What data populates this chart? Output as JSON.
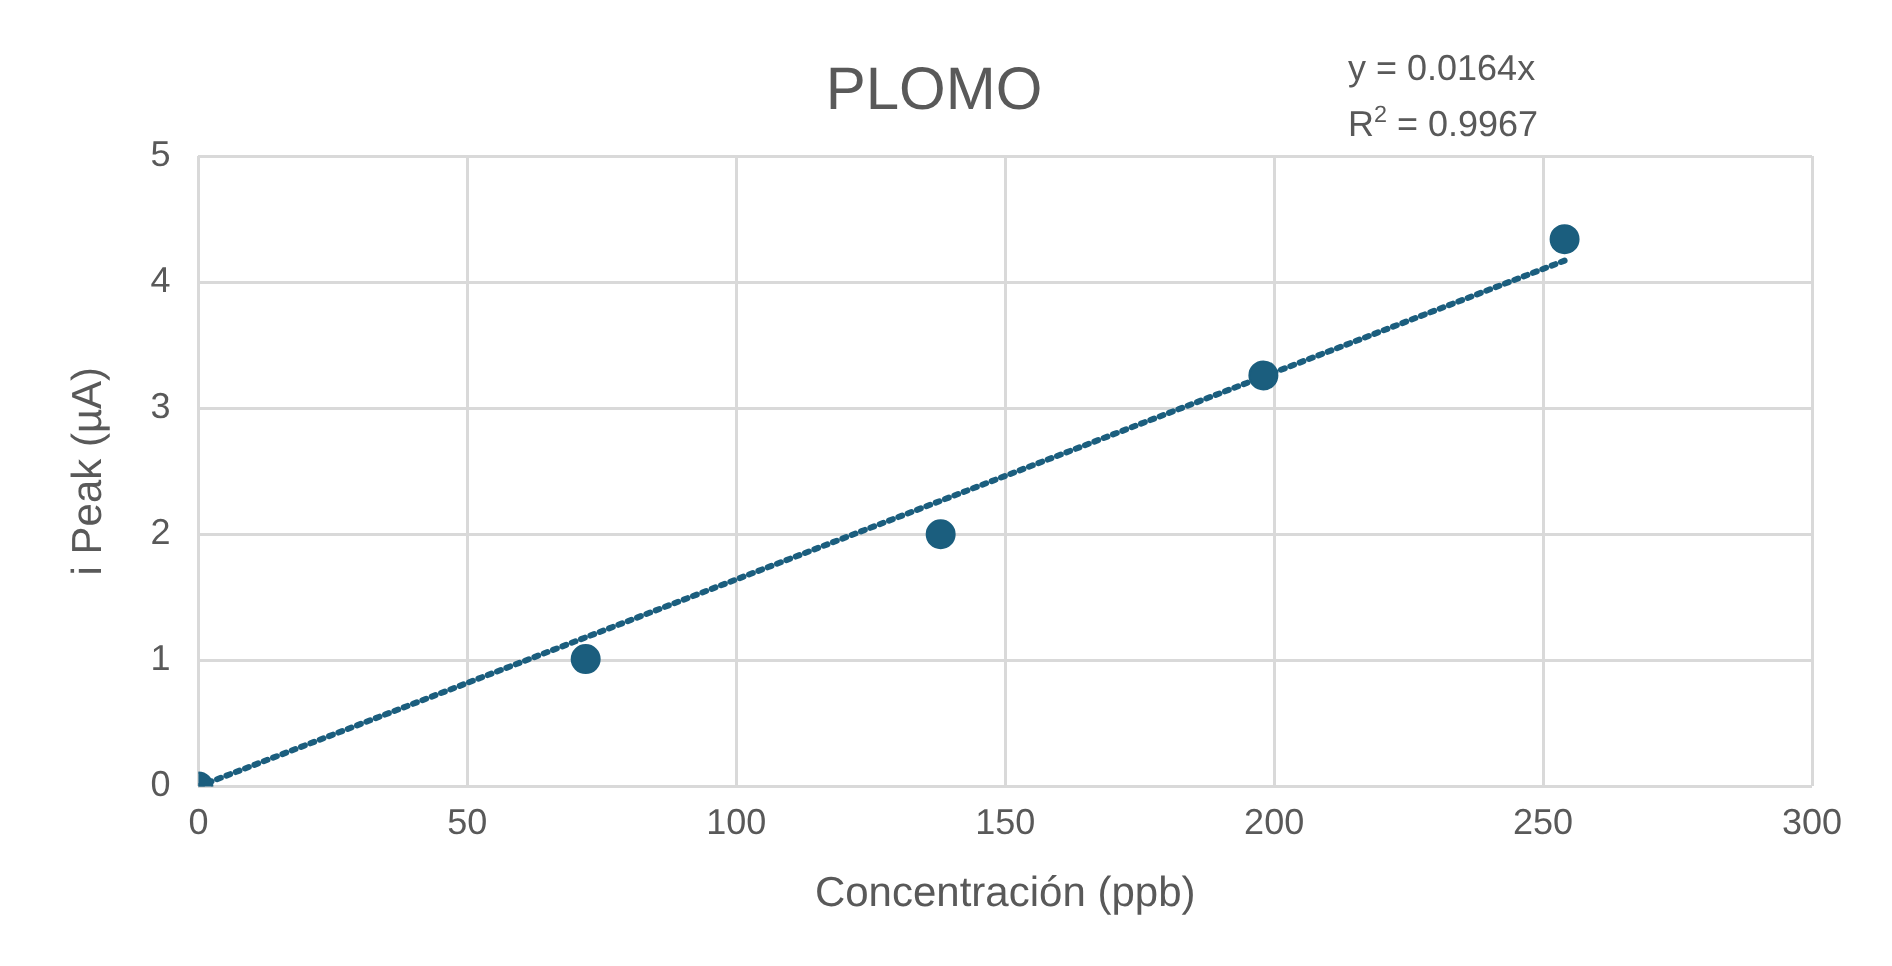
{
  "chart_data": {
    "type": "scatter",
    "title": "PLOMO",
    "xlabel": "Concentración (ppb)",
    "ylabel": "i Peak (µA)",
    "series": [
      {
        "color": "#1b5e7e",
        "marker": "circle",
        "x": [
          0,
          72,
          138,
          198,
          254
        ],
        "values": [
          0,
          1.01,
          2.0,
          3.26,
          4.34
        ]
      },
      {
        "type": "line",
        "color": "#1b5e7e",
        "marker": "none",
        "line_style": "dotted",
        "x": [
          0,
          254
        ],
        "values": [
          0,
          4.17
        ]
      }
    ],
    "xlim": [
      0,
      300
    ],
    "xticks": [
      0,
      50,
      100,
      150,
      200,
      250,
      300
    ],
    "ylim": [
      0,
      5
    ],
    "yticks": [
      0,
      1,
      2,
      3,
      4,
      5
    ],
    "grid": true,
    "legend": false,
    "annotations": [
      "y = 0.0164x",
      "R$^{2}$ = 0.9967"
    ]
  }
}
